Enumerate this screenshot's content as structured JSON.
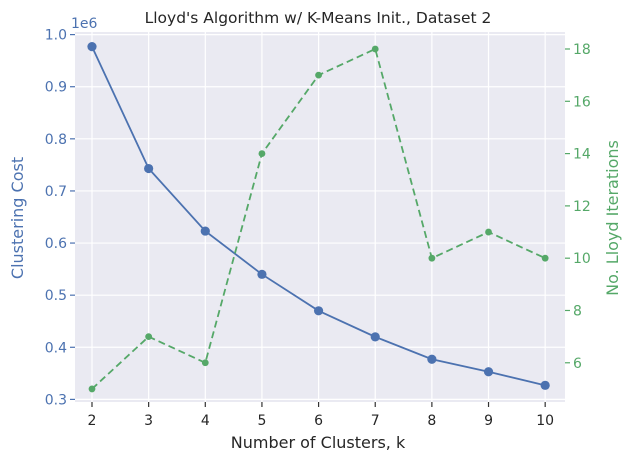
{
  "chart_data": {
    "type": "line",
    "title": "Lloyd's Algorithm w/ K-Means Init., Dataset 2",
    "xlabel": "Number of Clusters, k",
    "x": [
      2,
      3,
      4,
      5,
      6,
      7,
      8,
      9,
      10
    ],
    "x_ticks": [
      "2",
      "3",
      "4",
      "5",
      "6",
      "7",
      "8",
      "9",
      "10"
    ],
    "xlim": [
      1.7,
      10.35
    ],
    "grid": true,
    "legend": "none",
    "y_left": {
      "label": "Clustering Cost",
      "offset_label": "1e6",
      "ylim": [
        0.295,
        1.005
      ],
      "ticks": [
        0.3,
        0.4,
        0.5,
        0.6,
        0.7,
        0.8,
        0.9,
        1.0
      ],
      "tick_labels": [
        "0.3",
        "0.4",
        "0.5",
        "0.6",
        "0.7",
        "0.8",
        "0.9",
        "1.0"
      ],
      "color": "#4c72b0"
    },
    "y_right": {
      "label": "No. Lloyd Iterations",
      "ylim": [
        4.5,
        18.65
      ],
      "ticks": [
        6,
        8,
        10,
        12,
        14,
        16,
        18
      ],
      "tick_labels": [
        "6",
        "8",
        "10",
        "12",
        "14",
        "16",
        "18"
      ],
      "color": "#55a868"
    },
    "series": [
      {
        "axis": "left",
        "style": "solid",
        "marker": "circle",
        "color": "#4c72b0",
        "values": [
          0.977,
          0.743,
          0.623,
          0.54,
          0.47,
          0.42,
          0.377,
          0.353,
          0.327
        ]
      },
      {
        "axis": "right",
        "style": "dashed",
        "marker": "circle",
        "color": "#55a868",
        "values": [
          5,
          7,
          6,
          14,
          17,
          18,
          10,
          11,
          10
        ]
      }
    ]
  }
}
